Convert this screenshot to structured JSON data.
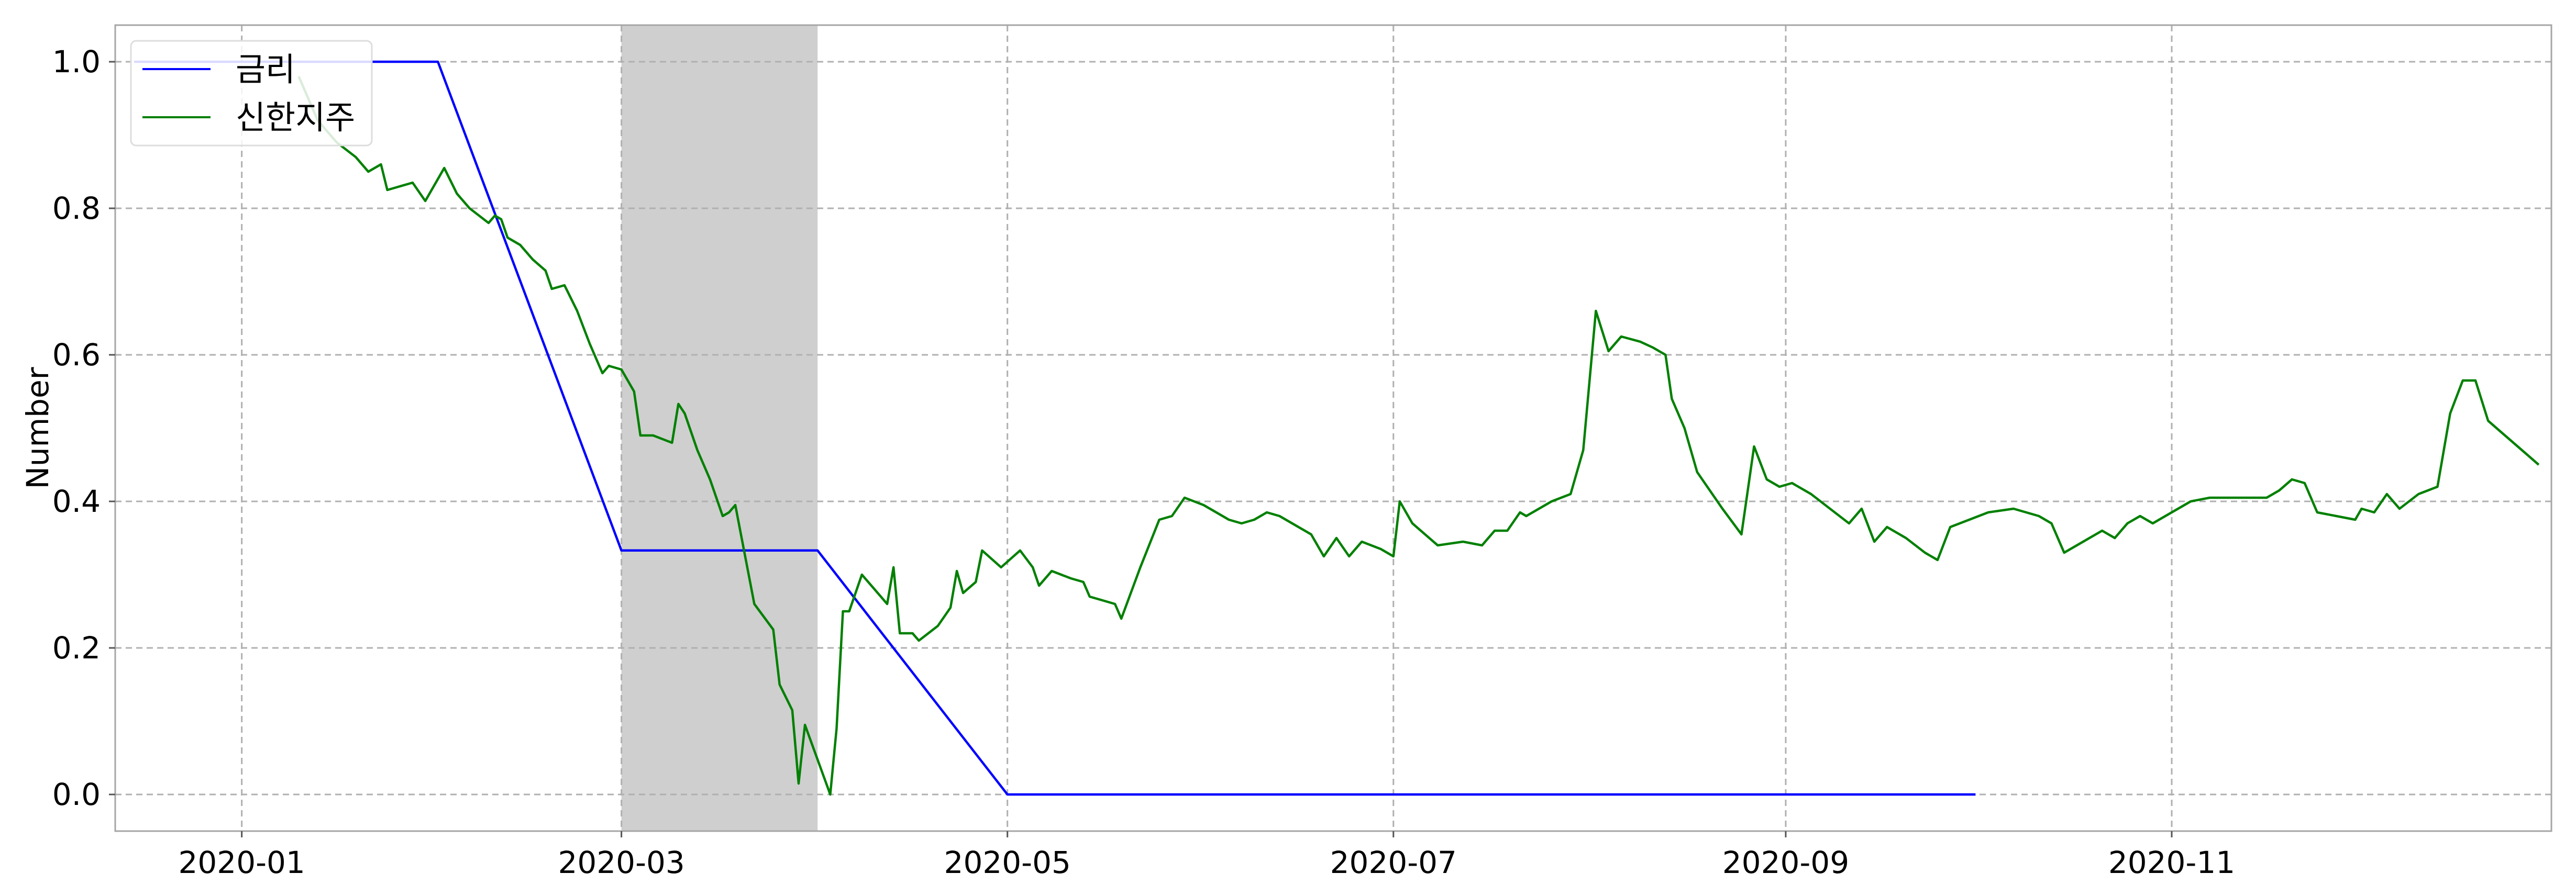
{
  "chart_data": {
    "type": "line",
    "title": "",
    "xlabel": "",
    "ylabel": "Number",
    "x_axis_type": "date",
    "xlim": [
      "2019-12-12",
      "2020-12-31"
    ],
    "ylim": [
      -0.05,
      1.05
    ],
    "xticks": [
      "2020-01",
      "2020-03",
      "2020-05",
      "2020-07",
      "2020-09",
      "2020-11"
    ],
    "xtick_dates": [
      "2020-01-01",
      "2020-03-01",
      "2020-05-01",
      "2020-07-01",
      "2020-09-01",
      "2020-11-01"
    ],
    "yticks": [
      "0.0",
      "0.2",
      "0.4",
      "0.6",
      "0.8",
      "1.0"
    ],
    "ytick_values": [
      0.0,
      0.2,
      0.4,
      0.6,
      0.8,
      1.0
    ],
    "grid": true,
    "legend_position": "top-left",
    "shaded_regions": [
      {
        "start": "2020-03-01",
        "end": "2020-04-01",
        "color": "#cfcfcf"
      }
    ],
    "series": [
      {
        "name": "금리",
        "color": "#0000ff",
        "points": [
          [
            "2019-12-15",
            1.0
          ],
          [
            "2020-02-01",
            1.0
          ],
          [
            "2020-03-01",
            0.333
          ],
          [
            "2020-04-01",
            0.333
          ],
          [
            "2020-05-01",
            0.0
          ],
          [
            "2020-10-01",
            0.0
          ]
        ]
      },
      {
        "name": "신한지주",
        "color": "#008000",
        "points": [
          [
            "2020-01-10",
            0.98
          ],
          [
            "2020-01-13",
            0.92
          ],
          [
            "2020-01-16",
            0.89
          ],
          [
            "2020-01-19",
            0.87
          ],
          [
            "2020-01-21",
            0.85
          ],
          [
            "2020-01-23",
            0.86
          ],
          [
            "2020-01-24",
            0.825
          ],
          [
            "2020-01-28",
            0.835
          ],
          [
            "2020-01-30",
            0.81
          ],
          [
            "2020-02-02",
            0.855
          ],
          [
            "2020-02-04",
            0.82
          ],
          [
            "2020-02-06",
            0.8
          ],
          [
            "2020-02-09",
            0.78
          ],
          [
            "2020-02-10",
            0.79
          ],
          [
            "2020-02-11",
            0.785
          ],
          [
            "2020-02-12",
            0.76
          ],
          [
            "2020-02-14",
            0.75
          ],
          [
            "2020-02-16",
            0.73
          ],
          [
            "2020-02-18",
            0.715
          ],
          [
            "2020-02-19",
            0.69
          ],
          [
            "2020-02-21",
            0.695
          ],
          [
            "2020-02-23",
            0.66
          ],
          [
            "2020-02-25",
            0.615
          ],
          [
            "2020-02-27",
            0.575
          ],
          [
            "2020-02-28",
            0.585
          ],
          [
            "2020-03-01",
            0.58
          ],
          [
            "2020-03-03",
            0.55
          ],
          [
            "2020-03-04",
            0.49
          ],
          [
            "2020-03-06",
            0.49
          ],
          [
            "2020-03-09",
            0.48
          ],
          [
            "2020-03-10",
            0.533
          ],
          [
            "2020-03-11",
            0.52
          ],
          [
            "2020-03-13",
            0.47
          ],
          [
            "2020-03-15",
            0.43
          ],
          [
            "2020-03-17",
            0.38
          ],
          [
            "2020-03-18",
            0.385
          ],
          [
            "2020-03-19",
            0.395
          ],
          [
            "2020-03-20",
            0.35
          ],
          [
            "2020-03-22",
            0.26
          ],
          [
            "2020-03-25",
            0.225
          ],
          [
            "2020-03-26",
            0.15
          ],
          [
            "2020-03-28",
            0.115
          ],
          [
            "2020-03-29",
            0.015
          ],
          [
            "2020-03-30",
            0.095
          ],
          [
            "2020-04-03",
            0.0
          ],
          [
            "2020-04-04",
            0.09
          ],
          [
            "2020-04-05",
            0.25
          ],
          [
            "2020-04-06",
            0.25
          ],
          [
            "2020-04-08",
            0.3
          ],
          [
            "2020-04-10",
            0.28
          ],
          [
            "2020-04-12",
            0.26
          ],
          [
            "2020-04-13",
            0.31
          ],
          [
            "2020-04-14",
            0.22
          ],
          [
            "2020-04-16",
            0.22
          ],
          [
            "2020-04-17",
            0.21
          ],
          [
            "2020-04-20",
            0.23
          ],
          [
            "2020-04-22",
            0.255
          ],
          [
            "2020-04-23",
            0.305
          ],
          [
            "2020-04-24",
            0.275
          ],
          [
            "2020-04-26",
            0.29
          ],
          [
            "2020-04-27",
            0.333
          ],
          [
            "2020-04-30",
            0.31
          ],
          [
            "2020-05-03",
            0.333
          ],
          [
            "2020-05-05",
            0.31
          ],
          [
            "2020-05-06",
            0.285
          ],
          [
            "2020-05-08",
            0.305
          ],
          [
            "2020-05-11",
            0.295
          ],
          [
            "2020-05-13",
            0.29
          ],
          [
            "2020-05-14",
            0.27
          ],
          [
            "2020-05-16",
            0.265
          ],
          [
            "2020-05-18",
            0.26
          ],
          [
            "2020-05-19",
            0.24
          ],
          [
            "2020-05-22",
            0.31
          ],
          [
            "2020-05-25",
            0.375
          ],
          [
            "2020-05-27",
            0.38
          ],
          [
            "2020-05-29",
            0.405
          ],
          [
            "2020-06-01",
            0.395
          ],
          [
            "2020-06-03",
            0.385
          ],
          [
            "2020-06-05",
            0.375
          ],
          [
            "2020-06-07",
            0.37
          ],
          [
            "2020-06-09",
            0.375
          ],
          [
            "2020-06-11",
            0.385
          ],
          [
            "2020-06-13",
            0.38
          ],
          [
            "2020-06-16",
            0.365
          ],
          [
            "2020-06-18",
            0.355
          ],
          [
            "2020-06-20",
            0.325
          ],
          [
            "2020-06-22",
            0.35
          ],
          [
            "2020-06-24",
            0.325
          ],
          [
            "2020-06-26",
            0.345
          ],
          [
            "2020-06-29",
            0.335
          ],
          [
            "2020-07-01",
            0.325
          ],
          [
            "2020-07-02",
            0.4
          ],
          [
            "2020-07-04",
            0.37
          ],
          [
            "2020-07-08",
            0.34
          ],
          [
            "2020-07-12",
            0.345
          ],
          [
            "2020-07-15",
            0.34
          ],
          [
            "2020-07-17",
            0.36
          ],
          [
            "2020-07-19",
            0.36
          ],
          [
            "2020-07-21",
            0.385
          ],
          [
            "2020-07-22",
            0.38
          ],
          [
            "2020-07-26",
            0.4
          ],
          [
            "2020-07-29",
            0.41
          ],
          [
            "2020-07-31",
            0.47
          ],
          [
            "2020-08-02",
            0.66
          ],
          [
            "2020-08-04",
            0.605
          ],
          [
            "2020-08-06",
            0.625
          ],
          [
            "2020-08-09",
            0.618
          ],
          [
            "2020-08-11",
            0.61
          ],
          [
            "2020-08-13",
            0.6
          ],
          [
            "2020-08-14",
            0.54
          ],
          [
            "2020-08-16",
            0.5
          ],
          [
            "2020-08-18",
            0.44
          ],
          [
            "2020-08-22",
            0.39
          ],
          [
            "2020-08-25",
            0.355
          ],
          [
            "2020-08-27",
            0.475
          ],
          [
            "2020-08-29",
            0.43
          ],
          [
            "2020-08-31",
            0.42
          ],
          [
            "2020-09-02",
            0.425
          ],
          [
            "2020-09-05",
            0.41
          ],
          [
            "2020-09-08",
            0.39
          ],
          [
            "2020-09-11",
            0.37
          ],
          [
            "2020-09-13",
            0.39
          ],
          [
            "2020-09-15",
            0.345
          ],
          [
            "2020-09-17",
            0.365
          ],
          [
            "2020-09-20",
            0.35
          ],
          [
            "2020-09-23",
            0.33
          ],
          [
            "2020-09-25",
            0.32
          ],
          [
            "2020-09-27",
            0.365
          ],
          [
            "2020-09-30",
            0.375
          ],
          [
            "2020-10-03",
            0.385
          ],
          [
            "2020-10-07",
            0.39
          ],
          [
            "2020-10-11",
            0.38
          ],
          [
            "2020-10-13",
            0.37
          ],
          [
            "2020-10-15",
            0.33
          ],
          [
            "2020-10-17",
            0.34
          ],
          [
            "2020-10-19",
            0.35
          ],
          [
            "2020-10-21",
            0.36
          ],
          [
            "2020-10-23",
            0.35
          ],
          [
            "2020-10-25",
            0.37
          ],
          [
            "2020-10-27",
            0.38
          ],
          [
            "2020-10-29",
            0.37
          ],
          [
            "2020-10-31",
            0.38
          ],
          [
            "2020-11-04",
            0.4
          ],
          [
            "2020-11-07",
            0.405
          ],
          [
            "2020-11-10",
            0.405
          ],
          [
            "2020-11-13",
            0.405
          ],
          [
            "2020-11-16",
            0.405
          ],
          [
            "2020-11-18",
            0.415
          ],
          [
            "2020-11-20",
            0.43
          ],
          [
            "2020-11-22",
            0.425
          ],
          [
            "2020-11-24",
            0.385
          ],
          [
            "2020-11-27",
            0.38
          ],
          [
            "2020-11-30",
            0.375
          ],
          [
            "2020-12-01",
            0.39
          ],
          [
            "2020-12-03",
            0.385
          ],
          [
            "2020-12-05",
            0.41
          ],
          [
            "2020-12-07",
            0.39
          ],
          [
            "2020-12-10",
            0.41
          ],
          [
            "2020-12-13",
            0.42
          ],
          [
            "2020-12-15",
            0.52
          ],
          [
            "2020-12-17",
            0.565
          ],
          [
            "2020-12-19",
            0.565
          ],
          [
            "2020-12-21",
            0.51
          ],
          [
            "2020-12-23",
            0.495
          ],
          [
            "2020-12-25",
            0.48
          ],
          [
            "2020-12-27",
            0.465
          ],
          [
            "2020-12-29",
            0.45
          ]
        ]
      }
    ]
  }
}
